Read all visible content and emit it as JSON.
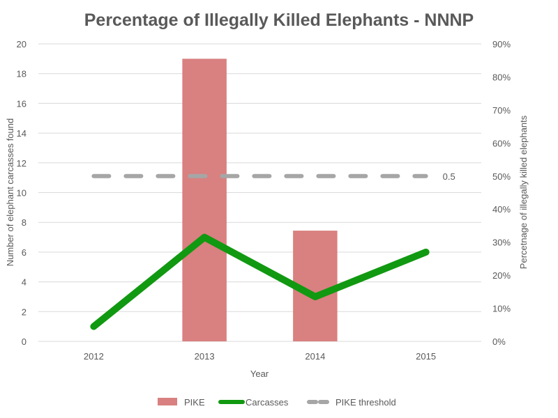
{
  "chart_data": {
    "type": "bar",
    "title": "Percentage of Illegally Killed Elephants - NNNP",
    "xlabel": "Year",
    "ylabel_left": "Number of elephant carcasses found",
    "ylabel_right": "Percetnage of illegally killed elephants",
    "categories": [
      "2012",
      "2013",
      "2014",
      "2015"
    ],
    "ylim_left": [
      0,
      20
    ],
    "yticks_left": [
      "0",
      "2",
      "4",
      "6",
      "8",
      "10",
      "12",
      "14",
      "16",
      "18",
      "20"
    ],
    "ylim_right": [
      0,
      0.9
    ],
    "yticks_right": [
      "0%",
      "10%",
      "20%",
      "30%",
      "40%",
      "50%",
      "60%",
      "70%",
      "80%",
      "90%"
    ],
    "grid": true,
    "legend_position": "bottom",
    "series": [
      {
        "name": "PIKE",
        "type": "bar",
        "axis": "right",
        "color": "#d98080",
        "values": [
          0,
          0.855,
          0.335,
          0
        ]
      },
      {
        "name": "Carcasses",
        "type": "line",
        "axis": "left",
        "color": "#119911",
        "values": [
          1,
          7,
          3,
          6
        ]
      },
      {
        "name": "PIKE threshold",
        "type": "dashed-line",
        "axis": "right",
        "color": "#a6a6a6",
        "values": [
          0.5,
          0.5,
          0.5,
          0.5
        ]
      }
    ],
    "annotations": [
      {
        "text": "0.5",
        "series": "PIKE threshold",
        "category": "2015"
      }
    ]
  }
}
